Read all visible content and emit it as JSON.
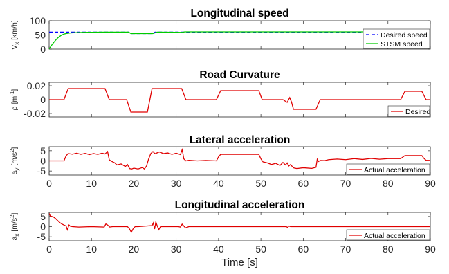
{
  "chart_data": [
    {
      "type": "line",
      "title": "Longitudinal speed",
      "ylabel": "V_x [km/h]",
      "xlabel": "",
      "xlim": [
        0,
        90
      ],
      "ylim": [
        0,
        100
      ],
      "yticks": [
        0,
        50,
        100
      ],
      "yticklabels": [
        "0",
        "50",
        "100"
      ],
      "show_xticklabels": false,
      "legend_position": "bottom-right",
      "series": [
        {
          "name": "Desired speed",
          "color": "#0000ff",
          "dash": "dashed",
          "x": [
            0,
            4,
            4.01,
            18.8,
            19,
            24.5,
            25,
            90
          ],
          "y": [
            60,
            60,
            60,
            60,
            55,
            55,
            60,
            60
          ]
        },
        {
          "name": "STSM speed",
          "color": "#00cc00",
          "dash": "solid",
          "x": [
            0,
            0.5,
            1,
            1.5,
            2,
            2.5,
            3,
            3.5,
            4,
            5,
            6,
            8,
            10,
            13,
            18.8,
            19.3,
            24.5,
            25.5,
            31.5,
            32,
            40,
            50,
            60,
            70,
            80,
            90
          ],
          "y": [
            0,
            12,
            22,
            31,
            39,
            45,
            50,
            53,
            55,
            57,
            58,
            59,
            59.5,
            60,
            60,
            55,
            55,
            60,
            59,
            61,
            61,
            61,
            61,
            61,
            61,
            61
          ]
        }
      ]
    },
    {
      "type": "line",
      "title": "Road Curvature",
      "ylabel": "ρ [m^-1]",
      "xlabel": "",
      "xlim": [
        0,
        90
      ],
      "ylim": [
        -0.025,
        0.025
      ],
      "yticks": [
        -0.02,
        0,
        0.02
      ],
      "yticklabels": [
        "-0.02",
        "0",
        "0.02"
      ],
      "show_xticklabels": false,
      "legend_position": "bottom-right",
      "series": [
        {
          "name": "Desired",
          "color": "#e00000",
          "dash": "solid",
          "x": [
            0,
            3.5,
            4.5,
            13.2,
            14.2,
            18.3,
            19.3,
            23.2,
            24.3,
            31.3,
            32.3,
            39.5,
            40.5,
            49.5,
            50.3,
            55.2,
            56.2,
            56.8,
            57.2,
            57.7,
            63,
            64,
            70,
            80,
            83,
            84,
            88,
            89,
            90
          ],
          "y": [
            0,
            0,
            0.016,
            0.016,
            0,
            0,
            -0.018,
            -0.018,
            0.016,
            0.016,
            0,
            0,
            0.013,
            0.013,
            0,
            0,
            -0.004,
            0.003,
            -0.003,
            -0.014,
            -0.014,
            0,
            0,
            0,
            0,
            0.012,
            0.012,
            0,
            0
          ]
        }
      ]
    },
    {
      "type": "line",
      "title": "Lateral acceleration",
      "ylabel": "a_y [m/s^2]",
      "xlabel": "",
      "xlim": [
        0,
        90
      ],
      "ylim": [
        -7,
        7
      ],
      "yticks": [
        -5,
        0,
        5
      ],
      "yticklabels": [
        "-5",
        "0",
        "5"
      ],
      "show_xticklabels": true,
      "xticks": [
        0,
        10,
        20,
        30,
        40,
        50,
        60,
        70,
        80,
        90
      ],
      "xticklabels": [
        "0",
        "10",
        "20",
        "30",
        "40",
        "50",
        "60",
        "70",
        "80",
        "90"
      ],
      "legend_position": "bottom-right",
      "series": [
        {
          "name": "Actual acceleration",
          "color": "#e00000",
          "dash": "solid",
          "x": [
            0,
            3.5,
            4,
            4.5,
            5.5,
            6.5,
            7.5,
            8.5,
            9.5,
            10.5,
            11.5,
            12.5,
            13.2,
            13.8,
            14.2,
            15,
            15.5,
            16,
            17,
            18,
            18.5,
            19,
            19.5,
            20,
            21,
            22,
            22.5,
            23,
            23.5,
            24,
            24.5,
            25,
            26,
            27,
            28,
            29,
            30,
            31,
            31.4,
            31.6,
            31.8,
            32.3,
            33,
            35,
            37,
            39.5,
            40,
            40.5,
            45,
            49.5,
            50,
            50.5,
            51.5,
            52.5,
            53.5,
            54.5,
            55.2,
            55.8,
            56.2,
            56.6,
            57,
            57.4,
            57.8,
            58.5,
            60,
            62,
            63,
            63.3,
            63.6,
            64,
            65,
            66,
            68,
            70,
            72,
            74,
            76,
            78,
            80,
            83,
            84,
            88,
            88.5,
            89,
            90
          ],
          "y": [
            0,
            0,
            2.5,
            3.6,
            3.3,
            3.8,
            3.2,
            3.7,
            3.1,
            3.6,
            3.2,
            3.8,
            3.4,
            4.6,
            0.5,
            -0.5,
            -1,
            -2,
            -1.5,
            -2.8,
            -1.8,
            -3.8,
            -4,
            -3.6,
            -4,
            -3.3,
            -4,
            -2.5,
            1,
            3.6,
            4.6,
            3.5,
            4.4,
            3.6,
            3.9,
            3.2,
            3.8,
            3.1,
            5.5,
            3.5,
            1,
            0,
            0.3,
            0,
            0.2,
            0,
            2,
            3.2,
            3.2,
            3.2,
            1,
            -0.5,
            -1,
            -1.8,
            -1.2,
            -2.3,
            -0.8,
            -2,
            -1,
            -2.5,
            -1.8,
            -2.8,
            -3.5,
            -3.8,
            -3.4,
            -3.7,
            -3.2,
            0.8,
            -0.3,
            0.2,
            0.1,
            0.6,
            0.9,
            0.6,
            1.1,
            0.7,
            1.2,
            0.8,
            1.1,
            1.1,
            2.6,
            2.6,
            1.2,
            0.3,
            0.2
          ]
        }
      ]
    },
    {
      "type": "line",
      "title": "Longitudinal acceleration",
      "ylabel": "a_x [m/s^2]",
      "xlabel": "Time [s]",
      "xlim": [
        0,
        90
      ],
      "ylim": [
        -7,
        7
      ],
      "yticks": [
        -5,
        0,
        5
      ],
      "yticklabels": [
        "-5",
        "0",
        "5"
      ],
      "show_xticklabels": true,
      "xticks": [
        0,
        10,
        20,
        30,
        40,
        50,
        60,
        70,
        80,
        90
      ],
      "xticklabels": [
        "0",
        "10",
        "20",
        "30",
        "40",
        "50",
        "60",
        "70",
        "80",
        "90"
      ],
      "legend_position": "bottom-right",
      "series": [
        {
          "name": "Actual acceleration",
          "color": "#e00000",
          "dash": "solid",
          "x": [
            0,
            0.3,
            1,
            1.5,
            2,
            2.5,
            3,
            3.5,
            4,
            4.3,
            4.7,
            5,
            5.5,
            7,
            10,
            13,
            13.4,
            13.8,
            14.3,
            15,
            18.5,
            19,
            19.4,
            19.8,
            20.3,
            21,
            24.3,
            24.6,
            24.9,
            25.2,
            25.5,
            25.9,
            26.3,
            27,
            30.5,
            31,
            31.4,
            31.8,
            32.2,
            33,
            40,
            50,
            56,
            56.3,
            56.6,
            57,
            60,
            70,
            80,
            90
          ],
          "y": [
            6.5,
            5.2,
            4.8,
            4,
            3,
            2,
            1.3,
            0.8,
            0.3,
            -1.5,
            0.8,
            0.2,
            0,
            -0.2,
            0,
            -0.2,
            1.3,
            0.8,
            -0.2,
            0,
            0,
            -1.2,
            -2.8,
            -1.2,
            0,
            0,
            0.5,
            1.8,
            -1.2,
            2.3,
            0.5,
            -1.5,
            0,
            0,
            0,
            -0.2,
            1.2,
            0.3,
            -0.6,
            0,
            0,
            0,
            0,
            -0.4,
            0.3,
            0,
            0,
            0,
            0,
            0
          ]
        }
      ]
    }
  ]
}
